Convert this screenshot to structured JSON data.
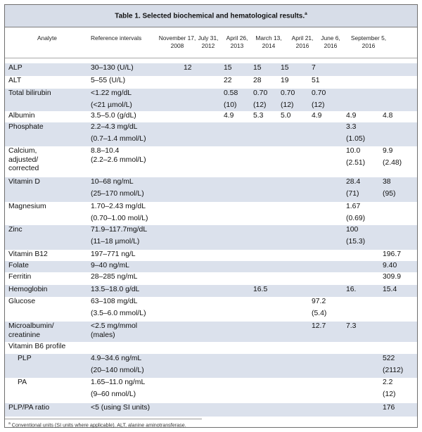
{
  "table": {
    "title": "Table 1. Selected biochemical and hematological results.",
    "title_marker": "a",
    "headers": {
      "analyte": "Analyte",
      "reference": "Reference intervals",
      "dates": [
        [
          "November 17,",
          "2008"
        ],
        [
          "July 31,",
          "2012"
        ],
        [
          "April 26,",
          "2013"
        ],
        [
          "March 13,",
          "2014"
        ],
        [
          "April 21,",
          "2016"
        ],
        [
          "June 6,",
          "2016"
        ],
        [
          "September 5,",
          "2016"
        ]
      ]
    },
    "rows": [
      {
        "analyte": [
          "ALP"
        ],
        "ref": [
          "30–130 (U/L)"
        ],
        "values": [
          [
            "12"
          ],
          [
            "15"
          ],
          [
            "15"
          ],
          [
            "15"
          ],
          [
            "7"
          ],
          [],
          []
        ]
      },
      {
        "analyte": [
          "ALT"
        ],
        "ref": [
          "5–55 (U/L)"
        ],
        "values": [
          [],
          [
            "22"
          ],
          [
            "28"
          ],
          [
            "19"
          ],
          [
            "51"
          ],
          [],
          []
        ]
      },
      {
        "analyte": [
          "Total bilirubin"
        ],
        "ref": [
          "<1.22 mg/dL",
          "(<21 µmol/L)"
        ],
        "values": [
          [],
          [
            "0.58",
            "(10)"
          ],
          [
            "0.70",
            "(12)"
          ],
          [
            "0.70",
            "(12)"
          ],
          [
            "0.70",
            "(12)"
          ],
          [],
          []
        ]
      },
      {
        "analyte": [
          "Albumin"
        ],
        "ref": [
          "3.5–5.0 (g/dL)"
        ],
        "values": [
          [],
          [
            "4.9"
          ],
          [
            "5.3"
          ],
          [
            "5.0"
          ],
          [
            "4.9"
          ],
          [
            "4.9"
          ],
          [
            "4.8"
          ]
        ]
      },
      {
        "analyte": [
          "Phosphate"
        ],
        "ref": [
          "2.2–4.3 mg/dL",
          "(0.7–1.4 mmol/L)"
        ],
        "values": [
          [],
          [],
          [],
          [],
          [],
          [
            "3.3",
            "(1.05)"
          ],
          []
        ]
      },
      {
        "analyte": [
          "Calcium,",
          "adjusted/",
          "corrected"
        ],
        "ref": [
          "8.8–10.4",
          "(2.2–2.6 mmol/L)"
        ],
        "values": [
          [],
          [],
          [],
          [],
          [],
          [
            "10.0",
            "(2.51)"
          ],
          [
            "9.9",
            "(2.48)"
          ]
        ]
      },
      {
        "analyte": [
          "Vitamin D"
        ],
        "ref": [
          "10–68 ng/mL",
          "(25–170 nmol/L)"
        ],
        "values": [
          [],
          [],
          [],
          [],
          [],
          [
            "28.4",
            "(71)"
          ],
          [
            "38",
            "(95)"
          ]
        ]
      },
      {
        "analyte": [
          "Magnesium"
        ],
        "ref": [
          "1.70–2.43 mg/dL",
          "(0.70–1.00 mol/L)"
        ],
        "values": [
          [],
          [],
          [],
          [],
          [],
          [
            "1.67",
            "(0.69)"
          ],
          []
        ]
      },
      {
        "analyte": [
          "Zinc"
        ],
        "ref": [
          "71.9–117.7mg/dL",
          "(11–18 µmol/L)"
        ],
        "values": [
          [],
          [],
          [],
          [],
          [],
          [
            "100",
            "(15.3)"
          ],
          []
        ]
      },
      {
        "analyte": [
          "Vitamin B12"
        ],
        "ref": [
          "197–771 ng/L"
        ],
        "values": [
          [],
          [],
          [],
          [],
          [],
          [],
          [
            "196.7"
          ]
        ]
      },
      {
        "analyte": [
          "Folate"
        ],
        "ref": [
          "9–40 ng/mL"
        ],
        "values": [
          [],
          [],
          [],
          [],
          [],
          [],
          [
            "9.40"
          ]
        ]
      },
      {
        "analyte": [
          "Ferritin"
        ],
        "ref": [
          "28–285 ng/mL"
        ],
        "values": [
          [],
          [],
          [],
          [],
          [],
          [],
          [
            "309.9"
          ]
        ]
      },
      {
        "analyte": [
          "Hemoglobin"
        ],
        "ref": [
          "13.5–18.0 g/dL"
        ],
        "values": [
          [],
          [],
          [
            "16.5"
          ],
          [],
          [],
          [
            "16."
          ],
          [
            "15.4"
          ]
        ]
      },
      {
        "analyte": [
          "Glucose"
        ],
        "ref": [
          "63–108 mg/dL",
          "(3.5–6.0 mmol/L)"
        ],
        "values": [
          [],
          [],
          [],
          [],
          [
            "97.2",
            "(5.4)"
          ],
          [],
          []
        ]
      },
      {
        "analyte": [
          "Microalbumin/",
          "creatinine"
        ],
        "ref": [
          "<2.5 mg/mmol",
          "(males)"
        ],
        "values": [
          [],
          [],
          [],
          [],
          [
            "12.7"
          ],
          [
            "7.3"
          ],
          []
        ]
      },
      {
        "analyte": [
          "Vitamin B6 profile"
        ],
        "ref": [],
        "values": [
          [],
          [],
          [],
          [],
          [],
          [],
          []
        ]
      },
      {
        "analyte": [
          "PLP"
        ],
        "ref": [
          "4.9–34.6 ng/mL",
          "(20–140 nmol/L)"
        ],
        "values": [
          [],
          [],
          [],
          [],
          [],
          [],
          [
            "522",
            "(2112)"
          ]
        ]
      },
      {
        "analyte": [
          "PA"
        ],
        "ref": [
          "1.65–11.0 ng/mL",
          "(9–60 nmol/L)"
        ],
        "values": [
          [],
          [],
          [],
          [],
          [],
          [],
          [
            "2.2",
            "(12)"
          ]
        ]
      },
      {
        "analyte": [
          "PLP/PA ratio"
        ],
        "ref": [
          "<5 (using SI units)"
        ],
        "values": [
          [],
          [],
          [],
          [],
          [],
          [],
          [
            "176"
          ]
        ]
      }
    ],
    "footnote_marker": "a",
    "footnote": "Conventional units (SI units where applicable). ALT, alanine aminotransferase."
  }
}
